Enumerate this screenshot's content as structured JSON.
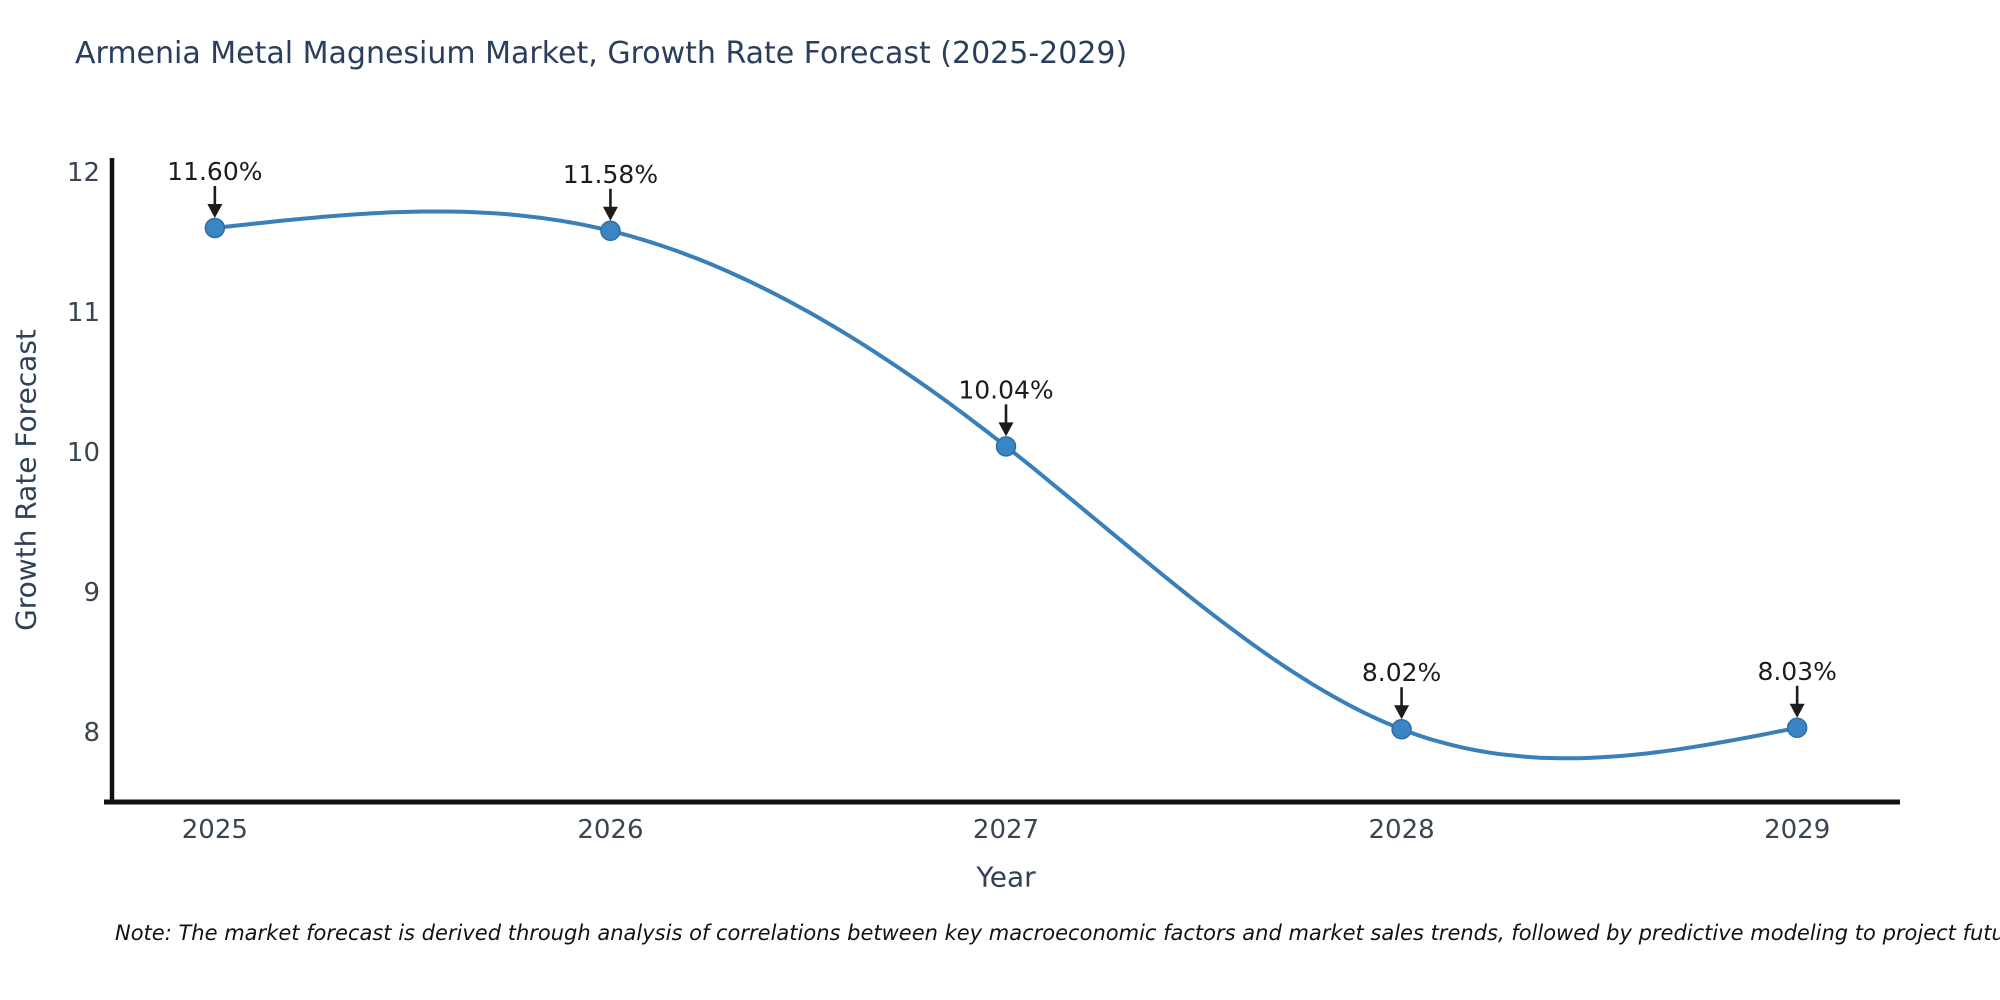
{
  "page": {
    "note": "Note: The market forecast is derived through analysis of correlations between key macroeconomic factors and market sales trends, followed by predictive modeling to project future sales"
  },
  "chart_data": {
    "type": "line",
    "title": "Armenia Metal Magnesium Market, Growth Rate Forecast (2025-2029)",
    "xlabel": "Year",
    "ylabel": "Growth Rate Forecast",
    "x": [
      2025,
      2026,
      2027,
      2028,
      2029
    ],
    "values": [
      11.6,
      11.58,
      10.04,
      8.02,
      8.03
    ],
    "point_labels": [
      "11.60%",
      "11.58%",
      "10.04%",
      "8.02%",
      "8.03%"
    ],
    "xtick_labels": [
      "2025",
      "2026",
      "2027",
      "2028",
      "2029"
    ],
    "yticks": [
      8,
      9,
      10,
      11,
      12
    ],
    "ylim": [
      7.5,
      12.1
    ],
    "xlim": [
      2024.74,
      2029.26
    ],
    "grid": false,
    "legend": false,
    "smooth_spline": true,
    "colors": {
      "line": "#3b7fb8",
      "marker": "#3c85c5",
      "marker_edge": "#2e6da6",
      "axis": "#111111",
      "annotation": "#1c1c1c",
      "title": "#2b3e5c",
      "axis_label": "#2f4158",
      "tick_label": "#3a4552"
    }
  }
}
